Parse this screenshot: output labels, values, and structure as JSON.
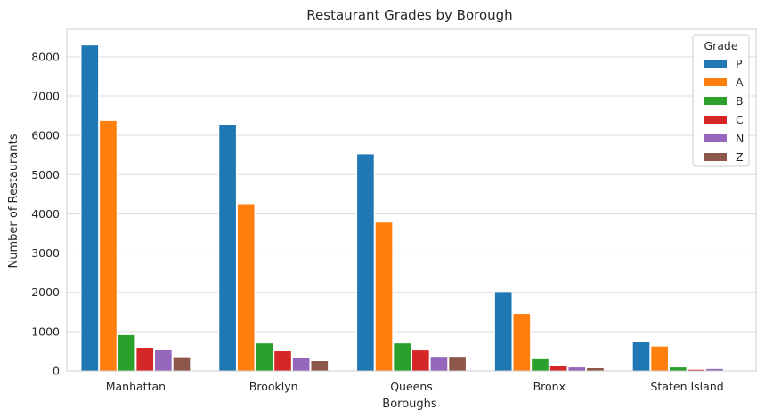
{
  "chart_data": {
    "type": "bar",
    "title": "Restaurant Grades by Borough",
    "xlabel": "Boroughs",
    "ylabel": "Number of Restaurants",
    "categories": [
      "Manhattan",
      "Brooklyn",
      "Queens",
      "Bronx",
      "Staten Island"
    ],
    "ylim": [
      0,
      8700
    ],
    "yticks": [
      0,
      1000,
      2000,
      3000,
      4000,
      5000,
      6000,
      7000,
      8000
    ],
    "grid": true,
    "legend_title": "Grade",
    "legend_position": "top-right",
    "series": [
      {
        "name": "P",
        "color": "#1f77b4",
        "values": [
          8300,
          6270,
          5530,
          2020,
          740
        ]
      },
      {
        "name": "A",
        "color": "#ff7f0e",
        "values": [
          6380,
          4260,
          3790,
          1460,
          630
        ]
      },
      {
        "name": "B",
        "color": "#2ca02c",
        "values": [
          920,
          710,
          710,
          310,
          100
        ]
      },
      {
        "name": "C",
        "color": "#d62728",
        "values": [
          600,
          510,
          530,
          130,
          40
        ]
      },
      {
        "name": "N",
        "color": "#9467bd",
        "values": [
          550,
          340,
          370,
          100,
          60
        ]
      },
      {
        "name": "Z",
        "color": "#8c564b",
        "values": [
          360,
          260,
          370,
          80,
          20
        ]
      }
    ]
  }
}
